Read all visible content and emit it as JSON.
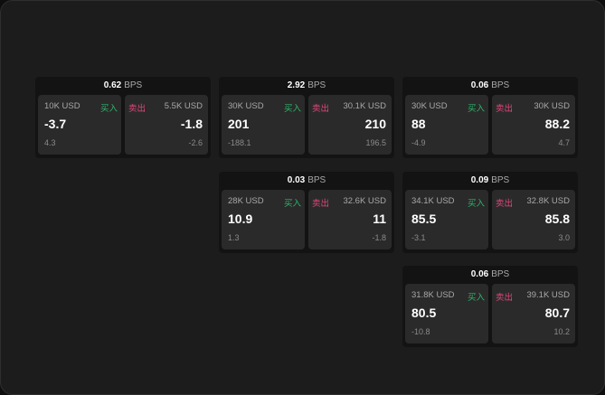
{
  "unit": "BPS",
  "buy_label": "买入",
  "sell_label": "卖出",
  "colors": {
    "buy": "#2fb36a",
    "sell": "#e0457b"
  },
  "cards": [
    {
      "spread": "0.62",
      "buy": {
        "size": "10K USD",
        "price": "-3.7",
        "change": "4.3"
      },
      "sell": {
        "size": "5.5K USD",
        "price": "-1.8",
        "change": "-2.6"
      }
    },
    {
      "spread": "2.92",
      "buy": {
        "size": "30K USD",
        "price": "201",
        "change": "-188.1"
      },
      "sell": {
        "size": "30.1K USD",
        "price": "210",
        "change": "196.5"
      }
    },
    {
      "spread": "0.06",
      "buy": {
        "size": "30K USD",
        "price": "88",
        "change": "-4.9"
      },
      "sell": {
        "size": "30K USD",
        "price": "88.2",
        "change": "4.7"
      }
    },
    {
      "spread": "0.03",
      "buy": {
        "size": "28K USD",
        "price": "10.9",
        "change": "1.3"
      },
      "sell": {
        "size": "32.6K USD",
        "price": "11",
        "change": "-1.8"
      }
    },
    {
      "spread": "0.09",
      "buy": {
        "size": "34.1K USD",
        "price": "85.5",
        "change": "-3.1"
      },
      "sell": {
        "size": "32.8K USD",
        "price": "85.8",
        "change": "3.0"
      }
    },
    {
      "spread": "0.06",
      "buy": {
        "size": "31.8K USD",
        "price": "80.5",
        "change": "-10.8"
      },
      "sell": {
        "size": "39.1K USD",
        "price": "80.7",
        "change": "10.2"
      }
    }
  ]
}
